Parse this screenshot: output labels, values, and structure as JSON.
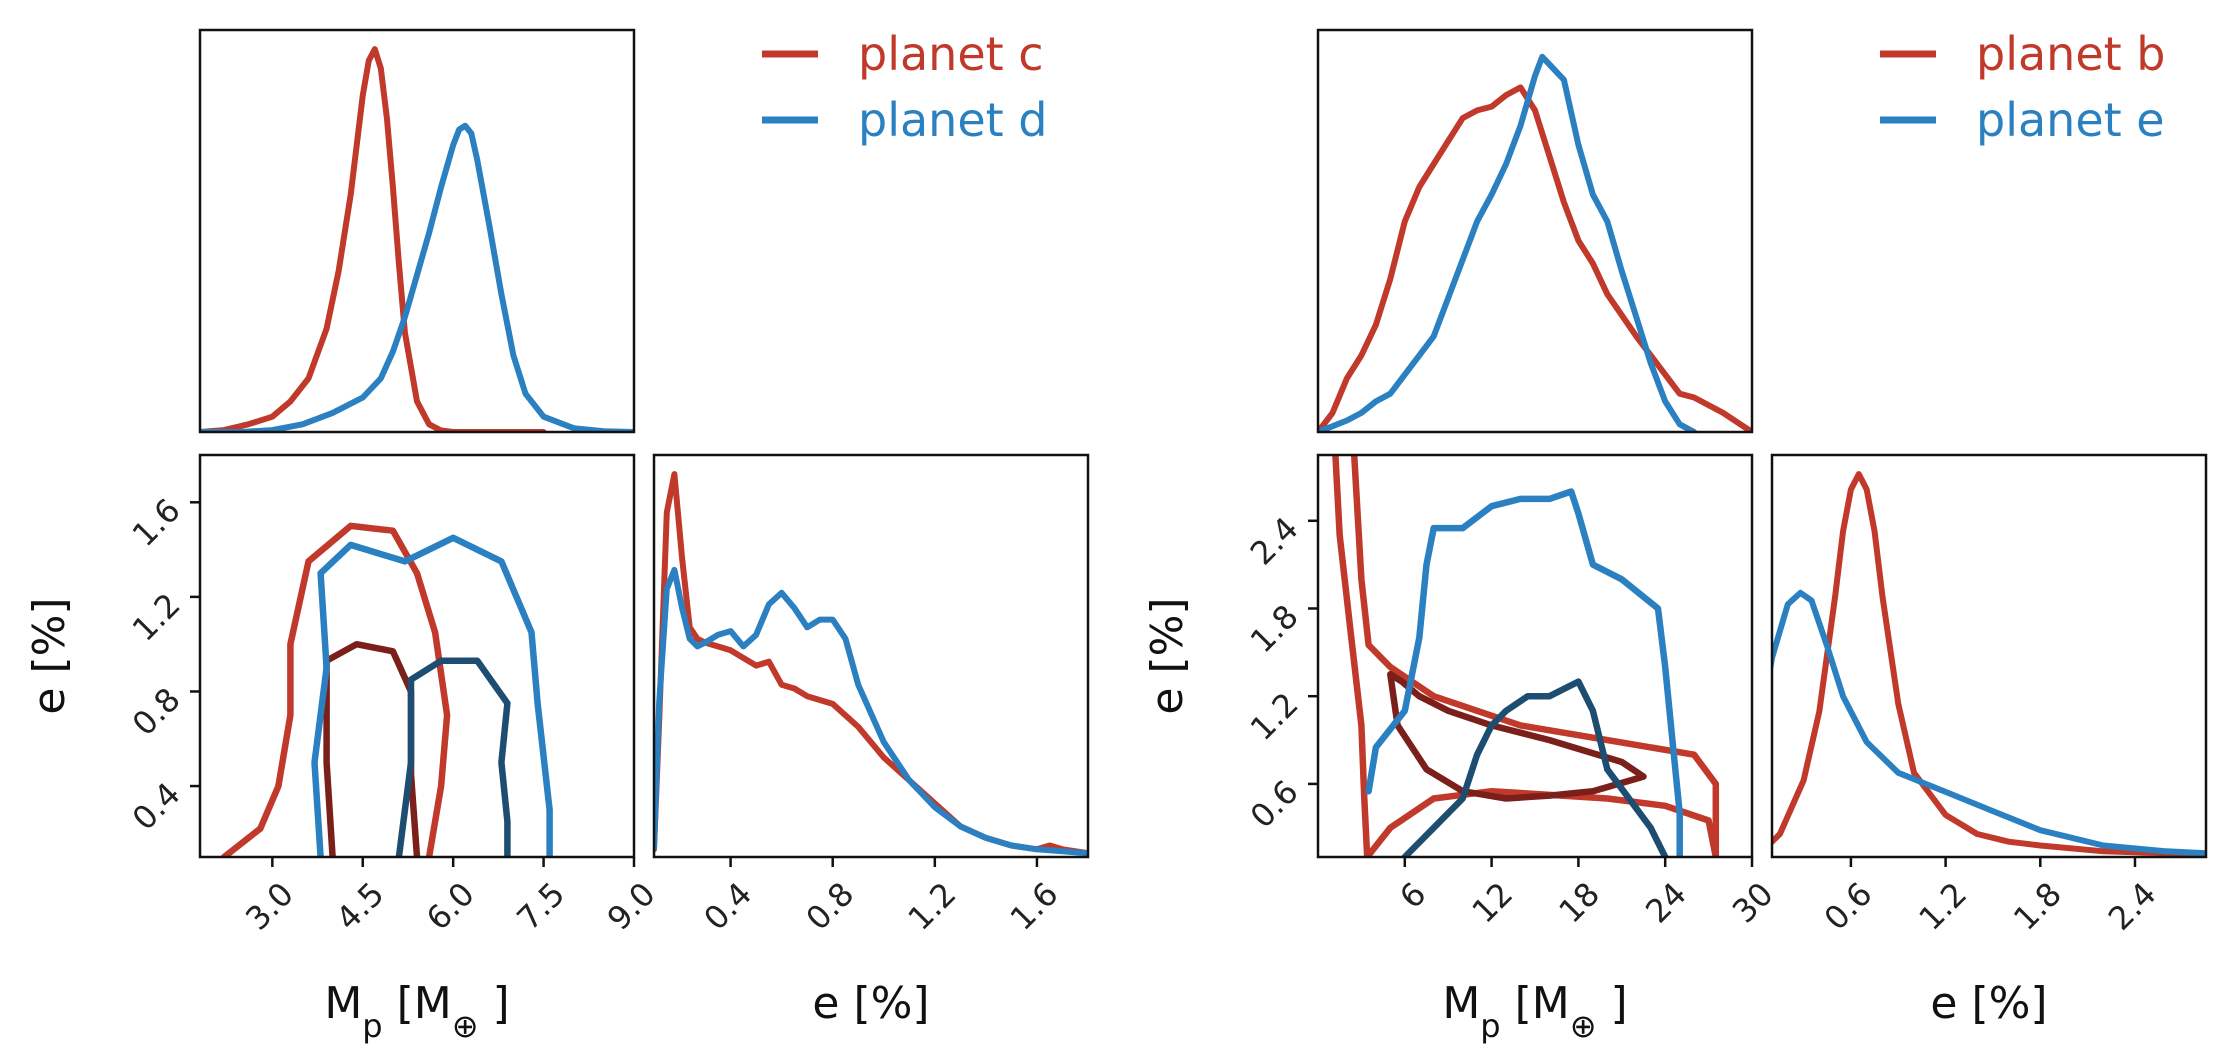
{
  "colors": {
    "red": "#c0392b",
    "blue": "#2a80c0",
    "darkred": "#7b1f1a",
    "darkblue": "#1d4e72"
  },
  "chart_data": [
    {
      "group": "left",
      "type": "corner-density",
      "legend": [
        {
          "label": "planet c",
          "color": "#c0392b"
        },
        {
          "label": "planet d",
          "color": "#2a80c0"
        }
      ],
      "mp_axis": {
        "label_main": "M",
        "label_sub": "p",
        "label_rest": " [M",
        "label_symbol": "⊕",
        "label_close": " ]",
        "lim": [
          1.8,
          9.0
        ],
        "ticks": [
          "3.0",
          "4.5",
          "6.0",
          "7.5",
          "9.0"
        ],
        "tick_values": [
          3.0,
          4.5,
          6.0,
          7.5,
          9.0
        ]
      },
      "e_axis": {
        "label": "e [%]",
        "lim": [
          0.1,
          1.8
        ],
        "ticks": [
          "0.4",
          "0.8",
          "1.2",
          "1.6"
        ],
        "tick_values": [
          0.4,
          0.8,
          1.2,
          1.6
        ]
      },
      "mp_density": [
        {
          "name": "planet c",
          "color": "#c0392b",
          "x": [
            1.8,
            2.2,
            2.6,
            3.0,
            3.3,
            3.6,
            3.9,
            4.1,
            4.3,
            4.5,
            4.6,
            4.7,
            4.8,
            4.9,
            5.0,
            5.1,
            5.2,
            5.4,
            5.6,
            5.8,
            6.0,
            6.5,
            7.0,
            7.5
          ],
          "y": [
            0.0,
            0.005,
            0.02,
            0.04,
            0.08,
            0.14,
            0.27,
            0.42,
            0.62,
            0.88,
            0.97,
            1.0,
            0.95,
            0.82,
            0.64,
            0.44,
            0.26,
            0.08,
            0.02,
            0.004,
            0.0,
            0.0,
            0.0,
            0.0
          ]
        },
        {
          "name": "planet d",
          "color": "#2a80c0",
          "x": [
            1.8,
            2.5,
            3.0,
            3.5,
            4.0,
            4.5,
            4.8,
            5.0,
            5.2,
            5.4,
            5.6,
            5.8,
            6.0,
            6.1,
            6.2,
            6.3,
            6.4,
            6.6,
            6.8,
            7.0,
            7.2,
            7.5,
            8.0,
            8.5,
            9.0
          ],
          "y": [
            0.0,
            0.0,
            0.005,
            0.02,
            0.05,
            0.09,
            0.14,
            0.21,
            0.3,
            0.41,
            0.52,
            0.64,
            0.75,
            0.79,
            0.8,
            0.78,
            0.71,
            0.54,
            0.36,
            0.2,
            0.1,
            0.04,
            0.01,
            0.002,
            0.0
          ]
        }
      ],
      "e_density": [
        {
          "name": "planet c",
          "color": "#c0392b",
          "x": [
            0.1,
            0.12,
            0.15,
            0.18,
            0.21,
            0.24,
            0.27,
            0.3,
            0.35,
            0.4,
            0.5,
            0.55,
            0.6,
            0.65,
            0.7,
            0.8,
            0.9,
            1.0,
            1.1,
            1.2,
            1.3,
            1.4,
            1.5,
            1.6,
            1.65,
            1.7,
            1.8
          ],
          "y": [
            0.02,
            0.35,
            0.9,
            1.0,
            0.78,
            0.6,
            0.57,
            0.56,
            0.55,
            0.54,
            0.5,
            0.51,
            0.45,
            0.44,
            0.42,
            0.4,
            0.34,
            0.26,
            0.2,
            0.14,
            0.08,
            0.05,
            0.03,
            0.02,
            0.03,
            0.02,
            0.01
          ]
        },
        {
          "name": "planet d",
          "color": "#2a80c0",
          "x": [
            0.1,
            0.12,
            0.15,
            0.18,
            0.21,
            0.24,
            0.27,
            0.3,
            0.35,
            0.4,
            0.45,
            0.5,
            0.55,
            0.6,
            0.65,
            0.7,
            0.75,
            0.8,
            0.85,
            0.9,
            1.0,
            1.1,
            1.2,
            1.3,
            1.4,
            1.5,
            1.6,
            1.8
          ],
          "y": [
            0.02,
            0.4,
            0.7,
            0.75,
            0.65,
            0.57,
            0.55,
            0.56,
            0.58,
            0.59,
            0.55,
            0.58,
            0.66,
            0.69,
            0.65,
            0.6,
            0.62,
            0.62,
            0.57,
            0.45,
            0.3,
            0.2,
            0.13,
            0.08,
            0.05,
            0.03,
            0.02,
            0.01
          ]
        }
      ],
      "contours": [
        {
          "name": "planet c outer",
          "color": "#c0392b",
          "points": [
            [
              2.2,
              0.1
            ],
            [
              2.8,
              0.22
            ],
            [
              3.1,
              0.4
            ],
            [
              3.3,
              0.7
            ],
            [
              3.3,
              1.0
            ],
            [
              3.6,
              1.35
            ],
            [
              4.3,
              1.5
            ],
            [
              5.0,
              1.48
            ],
            [
              5.4,
              1.3
            ],
            [
              5.7,
              1.05
            ],
            [
              5.9,
              0.7
            ],
            [
              5.8,
              0.4
            ],
            [
              5.6,
              0.1
            ]
          ]
        },
        {
          "name": "planet c inner",
          "color": "#7b1f1a",
          "points": [
            [
              4.0,
              0.1
            ],
            [
              3.9,
              0.5
            ],
            [
              3.9,
              0.93
            ],
            [
              4.4,
              1.0
            ],
            [
              5.0,
              0.97
            ],
            [
              5.3,
              0.8
            ],
            [
              5.3,
              0.45
            ],
            [
              5.4,
              0.1
            ]
          ]
        },
        {
          "name": "planet d outer",
          "color": "#2a80c0",
          "points": [
            [
              3.8,
              0.1
            ],
            [
              3.7,
              0.5
            ],
            [
              3.9,
              0.9
            ],
            [
              3.8,
              1.3
            ],
            [
              4.3,
              1.42
            ],
            [
              5.2,
              1.35
            ],
            [
              6.0,
              1.45
            ],
            [
              6.8,
              1.35
            ],
            [
              7.3,
              1.05
            ],
            [
              7.4,
              0.75
            ],
            [
              7.6,
              0.3
            ],
            [
              7.6,
              0.1
            ]
          ]
        },
        {
          "name": "planet d inner",
          "color": "#1d4e72",
          "points": [
            [
              5.1,
              0.1
            ],
            [
              5.3,
              0.5
            ],
            [
              5.3,
              0.85
            ],
            [
              5.8,
              0.93
            ],
            [
              6.4,
              0.93
            ],
            [
              6.9,
              0.75
            ],
            [
              6.8,
              0.5
            ],
            [
              6.9,
              0.25
            ],
            [
              6.9,
              0.1
            ]
          ]
        }
      ]
    },
    {
      "group": "right",
      "type": "corner-density",
      "legend": [
        {
          "label": "planet b",
          "color": "#c0392b"
        },
        {
          "label": "planet e",
          "color": "#2a80c0"
        }
      ],
      "mp_axis": {
        "label_main": "M",
        "label_sub": "p",
        "label_rest": " [M",
        "label_symbol": "⊕",
        "label_close": " ]",
        "lim": [
          0,
          30
        ],
        "ticks": [
          "6",
          "12",
          "18",
          "24",
          "30"
        ],
        "tick_values": [
          6,
          12,
          18,
          24,
          30
        ]
      },
      "e_axis": {
        "label": "e [%]",
        "lim": [
          0.1,
          2.85
        ],
        "ticks": [
          "0.6",
          "1.2",
          "1.8",
          "2.4"
        ],
        "tick_values": [
          0.6,
          1.2,
          1.8,
          2.4
        ]
      },
      "mp_density": [
        {
          "name": "planet b",
          "color": "#c0392b",
          "x": [
            0,
            1,
            2,
            3,
            4,
            5,
            6,
            7,
            8,
            9,
            10,
            11,
            12,
            13,
            14,
            15,
            16,
            17,
            18,
            19,
            20,
            22,
            24,
            25,
            26,
            28,
            30
          ],
          "y": [
            0.0,
            0.05,
            0.14,
            0.2,
            0.28,
            0.4,
            0.55,
            0.64,
            0.7,
            0.76,
            0.82,
            0.84,
            0.85,
            0.88,
            0.9,
            0.84,
            0.72,
            0.6,
            0.5,
            0.44,
            0.36,
            0.25,
            0.15,
            0.1,
            0.09,
            0.05,
            0.0
          ]
        },
        {
          "name": "planet e",
          "color": "#2a80c0",
          "x": [
            0,
            2,
            3,
            4,
            5,
            6,
            7,
            8,
            9,
            10,
            11,
            12,
            13,
            14,
            15,
            15.5,
            16,
            17,
            18,
            19,
            20,
            21,
            22,
            23,
            24,
            25,
            26
          ],
          "y": [
            0.0,
            0.03,
            0.05,
            0.08,
            0.1,
            0.15,
            0.2,
            0.25,
            0.35,
            0.45,
            0.55,
            0.62,
            0.7,
            0.8,
            0.93,
            0.98,
            0.96,
            0.92,
            0.75,
            0.62,
            0.55,
            0.42,
            0.3,
            0.18,
            0.08,
            0.02,
            0.0
          ]
        }
      ],
      "e_density": [
        {
          "name": "planet b",
          "color": "#c0392b",
          "x": [
            0.0,
            0.15,
            0.3,
            0.4,
            0.5,
            0.55,
            0.6,
            0.65,
            0.7,
            0.75,
            0.8,
            0.9,
            1.0,
            1.2,
            1.4,
            1.6,
            1.8,
            2.2,
            2.6,
            2.85
          ],
          "y": [
            0.0,
            0.06,
            0.2,
            0.38,
            0.68,
            0.85,
            0.96,
            1.0,
            0.96,
            0.85,
            0.68,
            0.4,
            0.22,
            0.11,
            0.06,
            0.04,
            0.03,
            0.015,
            0.01,
            0.0
          ]
        },
        {
          "name": "planet e",
          "color": "#2a80c0",
          "x": [
            0.0,
            0.1,
            0.2,
            0.28,
            0.35,
            0.45,
            0.55,
            0.7,
            0.9,
            1.2,
            1.5,
            1.8,
            2.2,
            2.6,
            2.85
          ],
          "y": [
            0.28,
            0.52,
            0.66,
            0.69,
            0.67,
            0.55,
            0.42,
            0.3,
            0.22,
            0.17,
            0.12,
            0.07,
            0.03,
            0.015,
            0.01
          ]
        }
      ],
      "contours": [
        {
          "name": "planet b outer",
          "color": "#c0392b",
          "points": [
            [
              1.2,
              2.85
            ],
            [
              1.5,
              2.3
            ],
            [
              2.3,
              1.6
            ],
            [
              3.0,
              1.0
            ],
            [
              3.2,
              0.5
            ],
            [
              3.4,
              0.1
            ],
            [
              5.0,
              0.3
            ],
            [
              8.0,
              0.5
            ],
            [
              12.0,
              0.55
            ],
            [
              20.0,
              0.5
            ],
            [
              24.0,
              0.45
            ],
            [
              27.0,
              0.35
            ],
            [
              27.5,
              0.1
            ],
            [
              27.5,
              0.6
            ],
            [
              26.0,
              0.8
            ],
            [
              20.0,
              0.9
            ],
            [
              14.0,
              1.0
            ],
            [
              8.0,
              1.2
            ],
            [
              5.0,
              1.4
            ],
            [
              3.5,
              1.55
            ],
            [
              3.0,
              2.0
            ],
            [
              2.5,
              2.85
            ]
          ]
        },
        {
          "name": "planet b inner",
          "color": "#7b1f1a",
          "points": [
            [
              5.0,
              1.35
            ],
            [
              5.5,
              1.0
            ],
            [
              7.5,
              0.7
            ],
            [
              10.0,
              0.55
            ],
            [
              13.0,
              0.5
            ],
            [
              16.0,
              0.52
            ],
            [
              19.0,
              0.55
            ],
            [
              22.5,
              0.65
            ],
            [
              21.0,
              0.75
            ],
            [
              16.0,
              0.9
            ],
            [
              12.0,
              1.0
            ],
            [
              9.0,
              1.1
            ],
            [
              7.0,
              1.2
            ],
            [
              5.8,
              1.3
            ],
            [
              5.0,
              1.35
            ]
          ]
        },
        {
          "name": "planet e outer",
          "color": "#2a80c0",
          "points": [
            [
              3.5,
              0.55
            ],
            [
              4.0,
              0.85
            ],
            [
              6.0,
              1.1
            ],
            [
              7.0,
              1.6
            ],
            [
              7.5,
              2.1
            ],
            [
              8.0,
              2.35
            ],
            [
              10.0,
              2.35
            ],
            [
              12.0,
              2.5
            ],
            [
              14.0,
              2.55
            ],
            [
              16.0,
              2.55
            ],
            [
              17.5,
              2.6
            ],
            [
              18.0,
              2.45
            ],
            [
              19.0,
              2.1
            ],
            [
              21.0,
              2.0
            ],
            [
              23.5,
              1.8
            ],
            [
              24.0,
              1.4
            ],
            [
              24.5,
              0.9
            ],
            [
              25.0,
              0.4
            ],
            [
              25.0,
              0.1
            ]
          ]
        },
        {
          "name": "planet e inner",
          "color": "#1d4e72",
          "points": [
            [
              6.0,
              0.1
            ],
            [
              8.0,
              0.3
            ],
            [
              10.0,
              0.5
            ],
            [
              11.0,
              0.8
            ],
            [
              12.0,
              1.0
            ],
            [
              13.0,
              1.1
            ],
            [
              14.5,
              1.2
            ],
            [
              16.0,
              1.2
            ],
            [
              18.0,
              1.3
            ],
            [
              19.0,
              1.1
            ],
            [
              19.5,
              0.9
            ],
            [
              20.0,
              0.7
            ],
            [
              21.5,
              0.5
            ],
            [
              23.0,
              0.3
            ],
            [
              24.0,
              0.1
            ]
          ]
        }
      ]
    }
  ]
}
